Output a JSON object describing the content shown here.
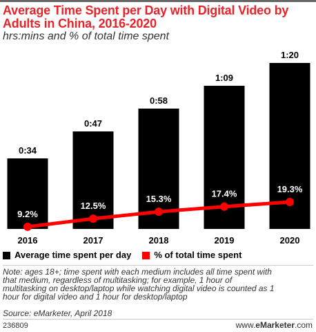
{
  "title": "Average Time Spent per Day with Digital Video by Adults in China, 2016-2020",
  "subtitle": "hrs:mins and % of total time spent",
  "colors": {
    "bar": "#000000",
    "line": "#ff0000",
    "title": "#e8232a",
    "text": "#000000"
  },
  "chart_data": {
    "type": "bar",
    "categories": [
      "2016",
      "2017",
      "2018",
      "2019",
      "2020"
    ],
    "series": [
      {
        "name": "Average time spent per day",
        "type": "bar",
        "values": [
          34,
          47,
          58,
          69,
          80
        ],
        "labels": [
          "0:34",
          "0:47",
          "0:58",
          "1:09",
          "1:20"
        ]
      },
      {
        "name": "% of total time spent",
        "type": "line",
        "values": [
          9.2,
          12.5,
          15.3,
          17.4,
          19.3
        ],
        "labels": [
          "9.2%",
          "12.5%",
          "15.3%",
          "17.4%",
          "19.3%"
        ]
      }
    ],
    "legend_position": "bottom",
    "grid": false
  },
  "note_text": "Note: ages 18+; time spent with each medium includes all time spent with\nthat medium, regardless of multitasking; for example, 1 hour of\nmultitasking on desktop/laptop while watching digital video is counted as 1\nhour for digital video and 1 hour for desktop/laptop",
  "source_text": "Source: eMarketer, April 2018",
  "footer": {
    "id": "236809",
    "logo_prefix": "www.",
    "logo_brand": "eMarketer",
    "logo_suffix": ".com"
  }
}
